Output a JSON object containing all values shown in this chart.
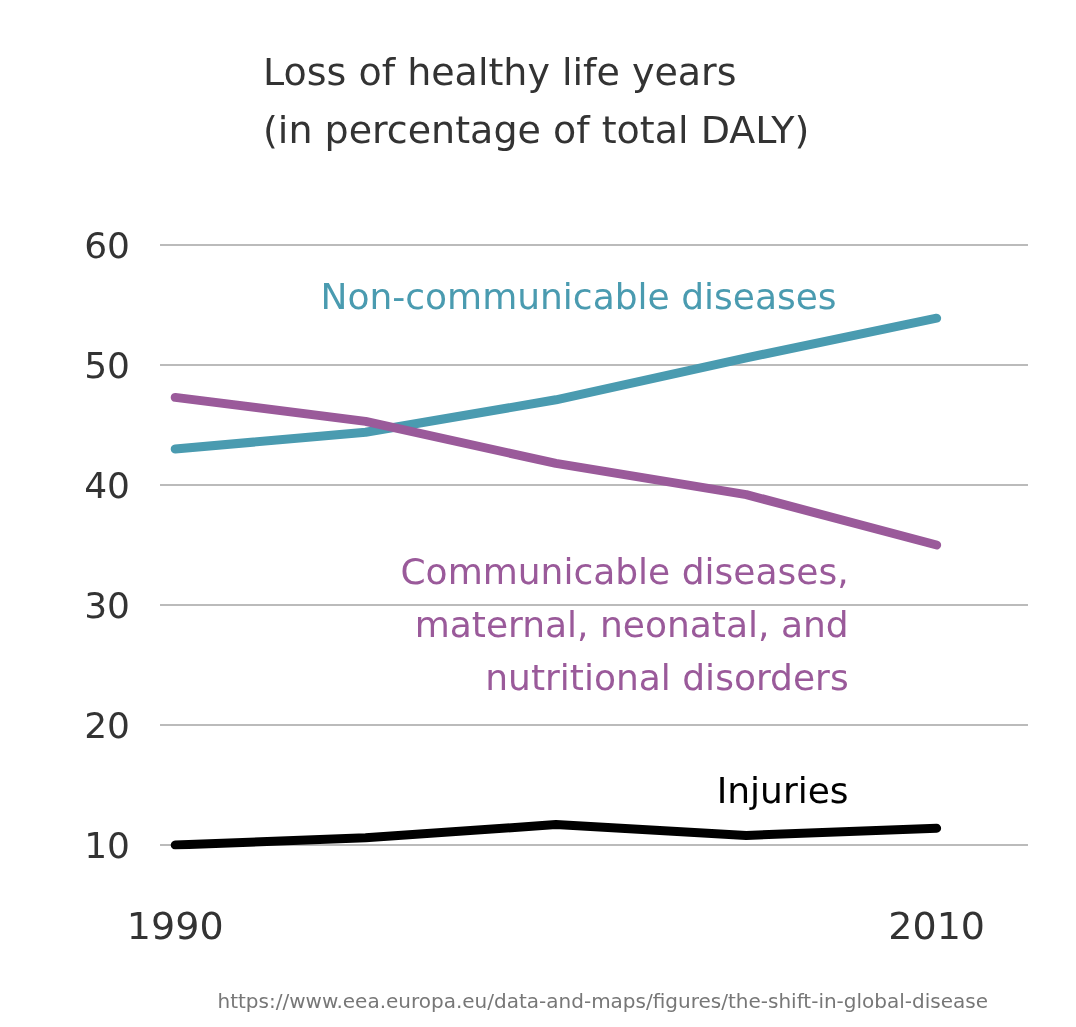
{
  "chart_data": {
    "type": "line",
    "title": "Loss of healthy life years\n(in percentage of total DALY)",
    "x": [
      1990,
      1995,
      2000,
      2005,
      2010
    ],
    "series": [
      {
        "name": "Non-communicable diseases",
        "color": "#4a9bb0",
        "values": [
          43,
          44.4,
          47.1,
          50.6,
          53.9
        ]
      },
      {
        "name": "Communicable diseases,\nmaternal, neonatal, and\nnutritional disorders",
        "color": "#9a5a9a",
        "values": [
          47.3,
          45.3,
          41.8,
          39.2,
          35
        ]
      },
      {
        "name": "Injuries",
        "color": "#000000",
        "values": [
          10,
          10.6,
          11.7,
          10.8,
          11.4
        ]
      }
    ],
    "xlim": [
      1989.6,
      2012.4
    ],
    "xticks": [
      1990,
      2010
    ],
    "ylim": [
      10,
      60
    ],
    "yticks": [
      10,
      20,
      30,
      40,
      50,
      60
    ],
    "grid": "y",
    "legend": false,
    "marker": "none",
    "line_style": "solid",
    "annotations": [
      "https://www.eea.europa.eu/data-and-maps/figures/the-shift-in-global-disease"
    ]
  }
}
